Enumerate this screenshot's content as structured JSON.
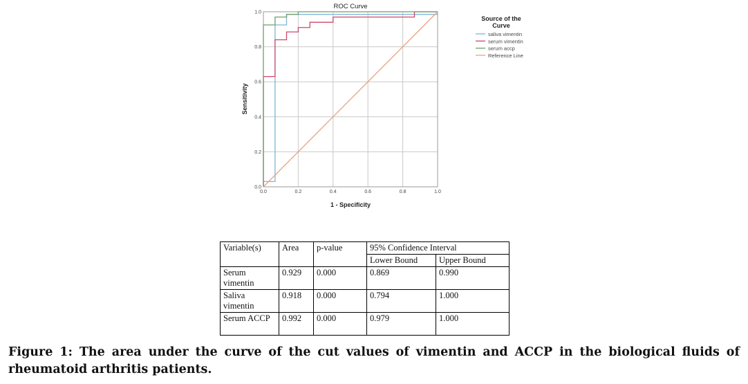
{
  "chart_data": {
    "type": "line",
    "title": "ROC Curve",
    "xlabel": "1 - Specificity",
    "ylabel": "Sensitivity",
    "xlim": [
      0,
      1
    ],
    "ylim": [
      0,
      1
    ],
    "xticks": [
      "0.0",
      "0.2",
      "0.4",
      "0.6",
      "0.8",
      "1.0"
    ],
    "yticks": [
      "0.0",
      "0.2",
      "0.4",
      "0.6",
      "0.8",
      "1.0"
    ],
    "grid": true,
    "legend_title": "Source of the Curve",
    "legend_position": "right",
    "series": [
      {
        "name": "saliva vimentin",
        "color": "#7fb5d8",
        "x": [
          0,
          0,
          0.067,
          0.067,
          0.133,
          0.133,
          1,
          1
        ],
        "y": [
          0,
          0.03,
          0.03,
          0.925,
          0.925,
          0.985,
          0.985,
          1
        ]
      },
      {
        "name": "serum vimentin",
        "color": "#d0476a",
        "x": [
          0,
          0,
          0.067,
          0.067,
          0.133,
          0.133,
          0.2,
          0.2,
          0.267,
          0.267,
          0.4,
          0.4,
          0.867,
          0.867,
          1
        ],
        "y": [
          0,
          0.63,
          0.63,
          0.84,
          0.84,
          0.885,
          0.885,
          0.91,
          0.91,
          0.94,
          0.94,
          0.97,
          0.97,
          1,
          1
        ]
      },
      {
        "name": "serum accp",
        "color": "#6e9e6e",
        "x": [
          0,
          0,
          0.067,
          0.067,
          0.133,
          0.133,
          0.2,
          0.2,
          1
        ],
        "y": [
          0,
          0.925,
          0.925,
          0.97,
          0.97,
          0.985,
          0.985,
          1,
          1
        ]
      },
      {
        "name": "Reference Line",
        "color": "#eda07a",
        "x": [
          0,
          1
        ],
        "y": [
          0,
          1
        ]
      }
    ]
  },
  "table": {
    "headers": [
      "Variable(s)",
      "Area",
      "p-value",
      "95% Confidence Interval"
    ],
    "subheaders": [
      "Lower Bound",
      "Upper Bound"
    ],
    "rows": [
      [
        "Serum vimentin",
        "0.929",
        "0.000",
        "0.869",
        "0.990"
      ],
      [
        "Saliva vimentin",
        "0.918",
        "0.000",
        "0.794",
        "1.000"
      ],
      [
        "Serum ACCP",
        "0.992",
        "0.000",
        "0.979",
        "1.000"
      ]
    ]
  },
  "caption": "Figure 1: The area under the curve of the cut values of vimentin and ACCP in the biological fluids of rheumatoid arthritis patients."
}
